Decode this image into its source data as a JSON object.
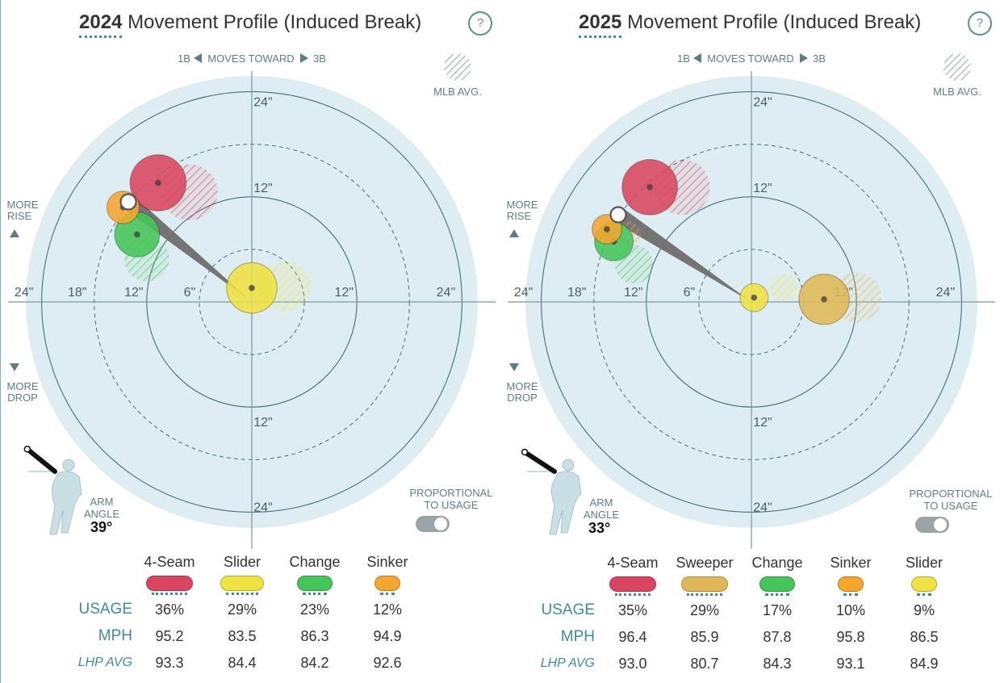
{
  "legend": {
    "mlb_avg": "MLB AVG."
  },
  "axis_labels": {
    "moves_toward": "MOVES TOWARD",
    "first_base": "1B",
    "third_base": "3B",
    "more_rise": [
      "MORE",
      "RISE"
    ],
    "more_drop": [
      "MORE",
      "DROP"
    ],
    "rings_left": [
      "24\"",
      "18\"",
      "12\"",
      "6\""
    ],
    "rings_right": [
      "12\"",
      "24\""
    ],
    "rings_vertical": [
      "24\"",
      "12\"",
      "12\"",
      "24\""
    ]
  },
  "arm_angle_label": [
    "ARM",
    "ANGLE"
  ],
  "proportional_label": [
    "PROPORTIONAL",
    "TO USAGE"
  ],
  "row_labels": {
    "usage": "USAGE",
    "mph": "MPH",
    "lhp_avg": "LHP AVG"
  },
  "panels": [
    {
      "title_year": "2024",
      "title_rest": "Movement Profile (Induced Break)",
      "help": "?",
      "arm_angle": "39°",
      "pitches": [
        {
          "name": "4-Seam",
          "color": "#d9455f",
          "usage": "36%",
          "mph": "95.2",
          "lhp_avg": "93.3"
        },
        {
          "name": "Slider",
          "color": "#eee340",
          "usage": "29%",
          "mph": "83.5",
          "lhp_avg": "84.4"
        },
        {
          "name": "Change",
          "color": "#44c55a",
          "usage": "23%",
          "mph": "86.3",
          "lhp_avg": "84.2"
        },
        {
          "name": "Sinker",
          "color": "#f5a62d",
          "usage": "12%",
          "mph": "94.9",
          "lhp_avg": "92.6"
        }
      ]
    },
    {
      "title_year": "2025",
      "title_rest": "Movement Profile (Induced Break)",
      "help": "?",
      "arm_angle": "33°",
      "pitches": [
        {
          "name": "4-Seam",
          "color": "#d9455f",
          "usage": "35%",
          "mph": "96.4",
          "lhp_avg": "93.0"
        },
        {
          "name": "Sweeper",
          "color": "#e0b855",
          "usage": "29%",
          "mph": "85.9",
          "lhp_avg": "80.7"
        },
        {
          "name": "Change",
          "color": "#44c55a",
          "usage": "17%",
          "mph": "87.8",
          "lhp_avg": "84.3"
        },
        {
          "name": "Sinker",
          "color": "#f5a62d",
          "usage": "10%",
          "mph": "95.8",
          "lhp_avg": "93.1"
        },
        {
          "name": "Slider",
          "color": "#eee340",
          "usage": "9%",
          "mph": "86.5",
          "lhp_avg": "84.9"
        }
      ]
    }
  ],
  "chart_data": [
    {
      "type": "scatter",
      "title": "2024 Movement Profile (Induced Break)",
      "units": "inches",
      "x_axis": "horizontal break (negative = toward 1B)",
      "y_axis": "induced vertical break (positive = more rise)",
      "xlim": [
        -24,
        24
      ],
      "ylim": [
        -24,
        24
      ],
      "arm_angle_deg": 39,
      "series": [
        {
          "name": "4-Seam",
          "x": -10.7,
          "y": 13.6,
          "usage_pct": 36,
          "mlb_avg": {
            "x": -7.1,
            "y": 12.5
          }
        },
        {
          "name": "Slider",
          "x": 0.0,
          "y": 1.6,
          "usage_pct": 29,
          "mlb_avg": {
            "x": 3.8,
            "y": 1.8
          }
        },
        {
          "name": "Change",
          "x": -13.1,
          "y": 7.7,
          "usage_pct": 23,
          "mlb_avg": {
            "x": -12.0,
            "y": 4.9
          }
        },
        {
          "name": "Sinker",
          "x": -14.7,
          "y": 10.8,
          "usage_pct": 12,
          "mlb_avg": {
            "x": -13.0,
            "y": 8.3
          }
        }
      ]
    },
    {
      "type": "scatter",
      "title": "2025 Movement Profile (Induced Break)",
      "units": "inches",
      "x_axis": "horizontal break (negative = toward 1B)",
      "y_axis": "induced vertical break (positive = more rise)",
      "xlim": [
        -24,
        24
      ],
      "ylim": [
        -24,
        24
      ],
      "arm_angle_deg": 33,
      "series": [
        {
          "name": "4-Seam",
          "x": -11.6,
          "y": 13.1,
          "usage_pct": 35,
          "mlb_avg": {
            "x": -7.9,
            "y": 13.1
          }
        },
        {
          "name": "Sweeper",
          "x": 8.3,
          "y": 0.3,
          "usage_pct": 29,
          "mlb_avg": {
            "x": 12.0,
            "y": 0.5
          }
        },
        {
          "name": "Change",
          "x": -15.7,
          "y": 6.9,
          "usage_pct": 17,
          "mlb_avg": {
            "x": -13.4,
            "y": 4.3
          }
        },
        {
          "name": "Sinker",
          "x": -16.5,
          "y": 8.3,
          "usage_pct": 10,
          "mlb_avg": {
            "x": -14.3,
            "y": 7.6
          }
        },
        {
          "name": "Slider",
          "x": 0.3,
          "y": 0.5,
          "usage_pct": 9,
          "mlb_avg": {
            "x": 3.7,
            "y": 1.6
          }
        }
      ]
    }
  ]
}
